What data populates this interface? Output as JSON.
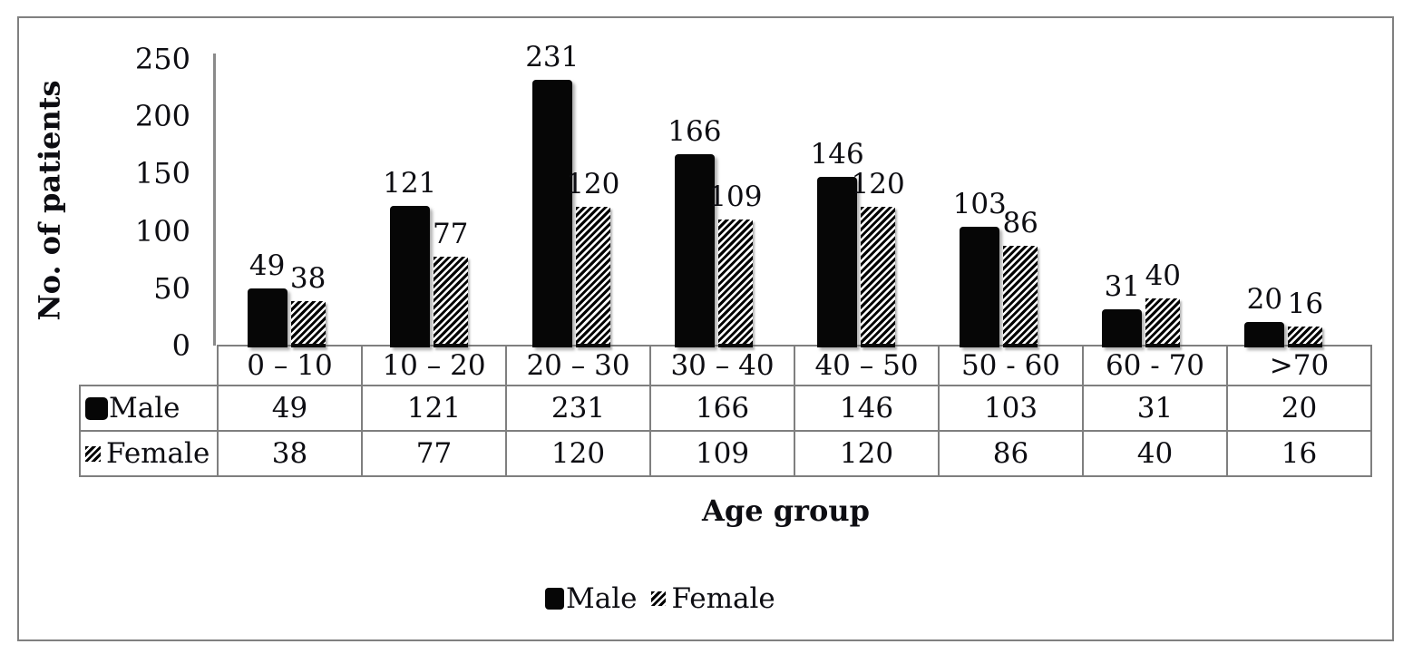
{
  "chart_data": {
    "type": "bar",
    "categories": [
      "0 – 10",
      "10 – 20",
      "20 – 30",
      "30 – 40",
      "40 – 50",
      "50 - 60",
      "60 - 70",
      ">70"
    ],
    "series": [
      {
        "name": "Male",
        "values": [
          49,
          121,
          231,
          166,
          146,
          103,
          31,
          20
        ]
      },
      {
        "name": "Female",
        "values": [
          38,
          77,
          120,
          109,
          120,
          86,
          40,
          16
        ]
      }
    ],
    "title": "",
    "xlabel": "Age group",
    "ylabel": "No. of patients",
    "ylim": [
      0,
      250
    ],
    "yticks": [
      0,
      50,
      100,
      150,
      200,
      250
    ],
    "grid": false,
    "legend_position": "bottom",
    "bar_labels_shown": true,
    "data_table_shown": true
  },
  "legend": {
    "male_label": "Male",
    "female_label": "Female"
  },
  "icons": {
    "male_swatch": "black-filled-square",
    "female_swatch": "diagonal-hatch-square"
  },
  "colors": {
    "male_bar": "#060606",
    "female_hatch": "#000000",
    "table_border": "#7f7f7f",
    "axis_line": "#8a8a8a",
    "frame_border": "#808080",
    "background": "#ffffff",
    "text": "#0d0d12"
  }
}
